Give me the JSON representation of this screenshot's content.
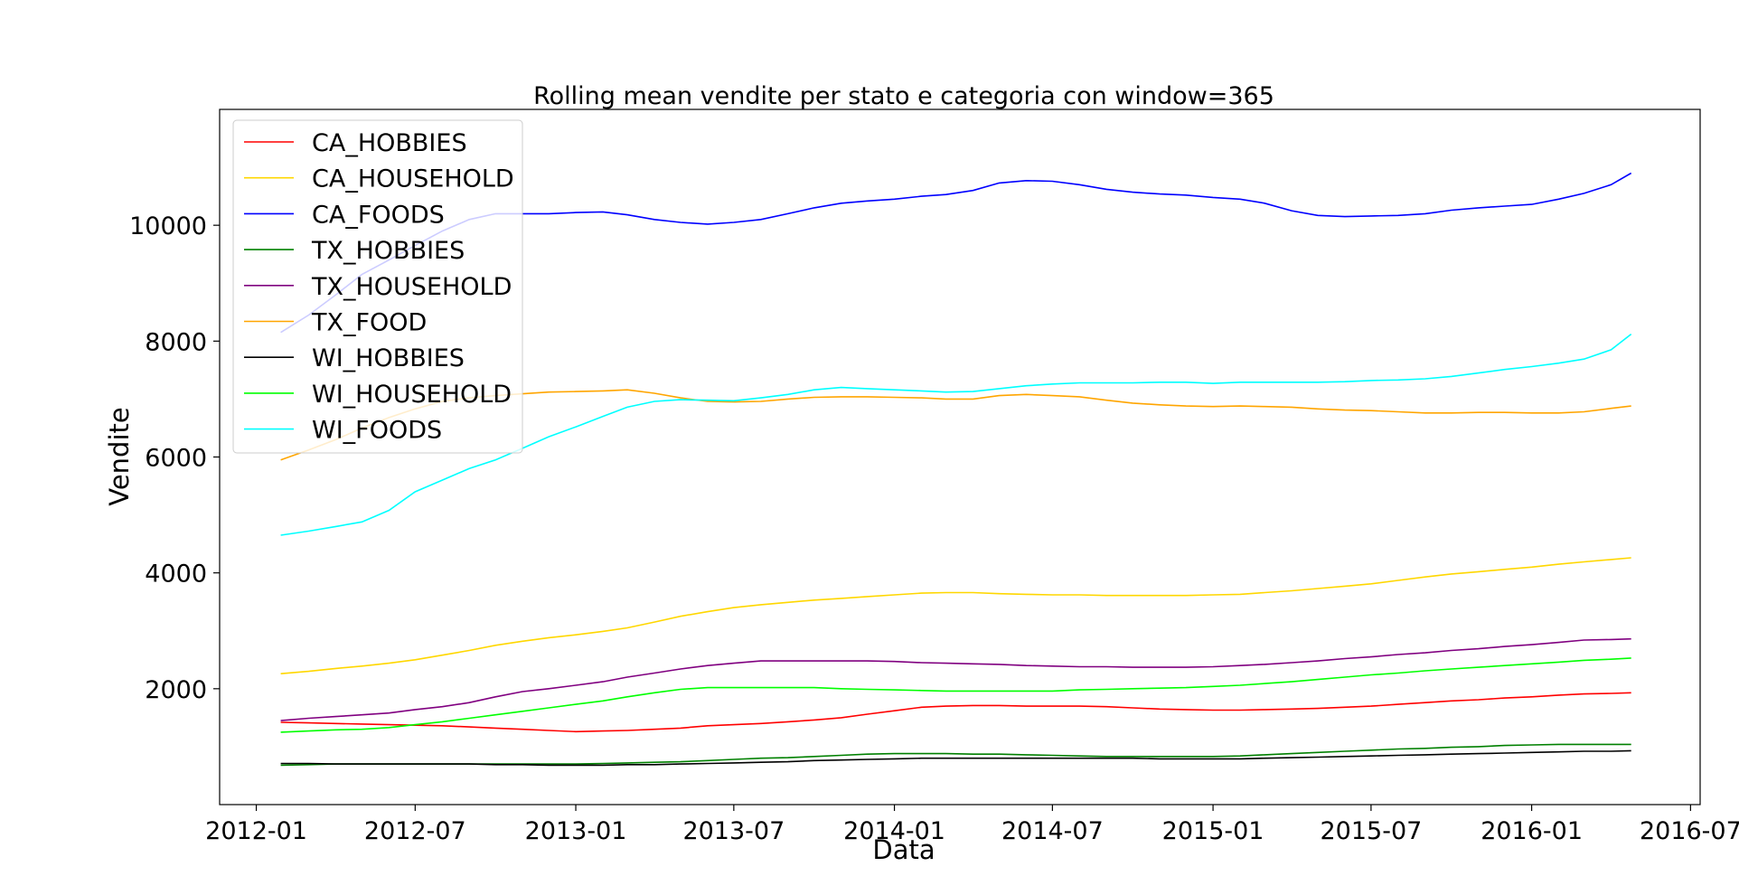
{
  "chart_data": {
    "type": "line",
    "title": "Rolling mean vendite per stato e categoria con window=365",
    "xlabel": "Data",
    "ylabel": "Vendite",
    "x_range": [
      "2011-11-20",
      "2016-07-12"
    ],
    "ylim": [
      0,
      12000
    ],
    "x_ticks": [
      {
        "date": "2012-01-01",
        "label": "2012-01"
      },
      {
        "date": "2012-07-01",
        "label": "2012-07"
      },
      {
        "date": "2013-01-01",
        "label": "2013-01"
      },
      {
        "date": "2013-07-01",
        "label": "2013-07"
      },
      {
        "date": "2014-01-01",
        "label": "2014-01"
      },
      {
        "date": "2014-07-01",
        "label": "2014-07"
      },
      {
        "date": "2015-01-01",
        "label": "2015-01"
      },
      {
        "date": "2015-07-01",
        "label": "2015-07"
      },
      {
        "date": "2016-01-01",
        "label": "2016-01"
      },
      {
        "date": "2016-07-01",
        "label": "2016-07"
      }
    ],
    "y_ticks": [
      {
        "value": 2000,
        "label": "2000"
      },
      {
        "value": 4000,
        "label": "4000"
      },
      {
        "value": 6000,
        "label": "6000"
      },
      {
        "value": 8000,
        "label": "8000"
      },
      {
        "value": 10000,
        "label": "10000"
      }
    ],
    "grid": false,
    "legend_position": "top-left",
    "x": [
      "2012-01-29",
      "2012-03-01",
      "2012-04-01",
      "2012-05-01",
      "2012-06-01",
      "2012-07-01",
      "2012-08-01",
      "2012-09-01",
      "2012-10-01",
      "2012-11-01",
      "2012-12-01",
      "2013-01-01",
      "2013-02-01",
      "2013-03-01",
      "2013-04-01",
      "2013-05-01",
      "2013-06-01",
      "2013-07-01",
      "2013-08-01",
      "2013-09-01",
      "2013-10-01",
      "2013-11-01",
      "2013-12-01",
      "2014-01-01",
      "2014-02-01",
      "2014-03-01",
      "2014-04-01",
      "2014-05-01",
      "2014-06-01",
      "2014-07-01",
      "2014-08-01",
      "2014-09-01",
      "2014-10-01",
      "2014-11-01",
      "2014-12-01",
      "2015-01-01",
      "2015-02-01",
      "2015-03-01",
      "2015-04-01",
      "2015-05-01",
      "2015-06-01",
      "2015-07-01",
      "2015-08-01",
      "2015-09-01",
      "2015-10-01",
      "2015-11-01",
      "2015-12-01",
      "2016-01-01",
      "2016-02-01",
      "2016-03-01",
      "2016-04-01",
      "2016-04-24"
    ],
    "series": [
      {
        "name": "CA_HOBBIES",
        "color": "#ff0000",
        "values": [
          1420,
          1410,
          1400,
          1390,
          1380,
          1370,
          1360,
          1340,
          1320,
          1300,
          1280,
          1260,
          1270,
          1280,
          1300,
          1320,
          1360,
          1380,
          1400,
          1430,
          1460,
          1500,
          1560,
          1620,
          1680,
          1700,
          1710,
          1710,
          1700,
          1700,
          1700,
          1690,
          1670,
          1650,
          1640,
          1630,
          1630,
          1640,
          1650,
          1660,
          1680,
          1700,
          1730,
          1760,
          1790,
          1810,
          1840,
          1860,
          1890,
          1910,
          1920,
          1930
        ]
      },
      {
        "name": "CA_HOUSEHOLD",
        "color": "#ffd700",
        "values": [
          2260,
          2300,
          2350,
          2390,
          2440,
          2500,
          2580,
          2660,
          2750,
          2820,
          2880,
          2930,
          2990,
          3050,
          3150,
          3250,
          3330,
          3400,
          3450,
          3490,
          3530,
          3560,
          3590,
          3620,
          3650,
          3660,
          3660,
          3640,
          3630,
          3620,
          3620,
          3610,
          3610,
          3610,
          3610,
          3620,
          3630,
          3660,
          3690,
          3730,
          3770,
          3810,
          3870,
          3930,
          3980,
          4020,
          4060,
          4100,
          4150,
          4190,
          4230,
          4260
        ]
      },
      {
        "name": "CA_FOODS",
        "color": "#0000ff",
        "values": [
          8150,
          8450,
          8800,
          9150,
          9400,
          9650,
          9900,
          10100,
          10200,
          10200,
          10200,
          10220,
          10230,
          10180,
          10100,
          10050,
          10020,
          10050,
          10100,
          10200,
          10300,
          10380,
          10420,
          10450,
          10500,
          10530,
          10600,
          10730,
          10770,
          10760,
          10700,
          10620,
          10570,
          10540,
          10520,
          10480,
          10450,
          10380,
          10250,
          10170,
          10150,
          10160,
          10170,
          10200,
          10260,
          10300,
          10330,
          10360,
          10450,
          10550,
          10700,
          10900
        ]
      },
      {
        "name": "TX_HOBBIES",
        "color": "#008000",
        "values": [
          680,
          690,
          700,
          700,
          700,
          700,
          700,
          700,
          700,
          700,
          700,
          700,
          710,
          720,
          730,
          740,
          760,
          780,
          800,
          810,
          830,
          850,
          870,
          880,
          880,
          880,
          870,
          870,
          860,
          850,
          840,
          830,
          830,
          830,
          830,
          830,
          840,
          860,
          880,
          900,
          920,
          940,
          960,
          970,
          990,
          1000,
          1020,
          1030,
          1040,
          1040,
          1040,
          1040
        ]
      },
      {
        "name": "TX_HOUSEHOLD",
        "color": "#800080",
        "values": [
          1450,
          1490,
          1520,
          1550,
          1580,
          1640,
          1690,
          1760,
          1860,
          1950,
          2000,
          2060,
          2120,
          2200,
          2270,
          2340,
          2400,
          2440,
          2480,
          2480,
          2480,
          2480,
          2480,
          2470,
          2450,
          2440,
          2430,
          2420,
          2400,
          2390,
          2380,
          2380,
          2370,
          2370,
          2370,
          2380,
          2400,
          2420,
          2450,
          2480,
          2520,
          2550,
          2590,
          2620,
          2660,
          2690,
          2730,
          2760,
          2800,
          2840,
          2850,
          2860
        ]
      },
      {
        "name": "TX_FOOD",
        "color": "#ffa500",
        "values": [
          5950,
          6120,
          6300,
          6500,
          6680,
          6830,
          6960,
          7020,
          7060,
          7090,
          7120,
          7130,
          7140,
          7160,
          7100,
          7020,
          6960,
          6950,
          6960,
          7000,
          7030,
          7040,
          7040,
          7030,
          7020,
          7000,
          7000,
          7060,
          7080,
          7060,
          7040,
          6980,
          6930,
          6900,
          6880,
          6870,
          6880,
          6870,
          6860,
          6830,
          6810,
          6800,
          6780,
          6760,
          6760,
          6770,
          6770,
          6760,
          6760,
          6780,
          6840,
          6880
        ]
      },
      {
        "name": "WI_HOBBIES",
        "color": "#000000",
        "values": [
          710,
          710,
          700,
          700,
          700,
          700,
          700,
          700,
          690,
          690,
          680,
          680,
          680,
          690,
          690,
          700,
          710,
          720,
          730,
          740,
          760,
          770,
          780,
          790,
          800,
          800,
          800,
          800,
          800,
          800,
          800,
          800,
          800,
          790,
          790,
          790,
          790,
          800,
          810,
          820,
          830,
          840,
          850,
          860,
          870,
          880,
          890,
          900,
          910,
          920,
          920,
          930
        ]
      },
      {
        "name": "WI_HOUSEHOLD",
        "color": "#00ff00",
        "values": [
          1250,
          1270,
          1290,
          1300,
          1330,
          1380,
          1430,
          1490,
          1550,
          1610,
          1670,
          1730,
          1790,
          1860,
          1930,
          1990,
          2020,
          2020,
          2020,
          2020,
          2020,
          2000,
          1990,
          1980,
          1970,
          1960,
          1960,
          1960,
          1960,
          1960,
          1980,
          1990,
          2000,
          2010,
          2020,
          2040,
          2060,
          2090,
          2120,
          2160,
          2200,
          2240,
          2270,
          2310,
          2340,
          2370,
          2400,
          2430,
          2460,
          2490,
          2510,
          2530
        ]
      },
      {
        "name": "WI_FOODS",
        "color": "#00ffff",
        "values": [
          4650,
          4720,
          4800,
          4880,
          5080,
          5400,
          5600,
          5800,
          5950,
          6150,
          6350,
          6520,
          6700,
          6860,
          6960,
          6990,
          6980,
          6970,
          7020,
          7080,
          7160,
          7200,
          7180,
          7160,
          7140,
          7120,
          7130,
          7180,
          7230,
          7260,
          7280,
          7280,
          7280,
          7290,
          7290,
          7270,
          7290,
          7290,
          7290,
          7290,
          7300,
          7320,
          7330,
          7350,
          7390,
          7450,
          7510,
          7560,
          7620,
          7690,
          7850,
          8120
        ]
      }
    ]
  }
}
